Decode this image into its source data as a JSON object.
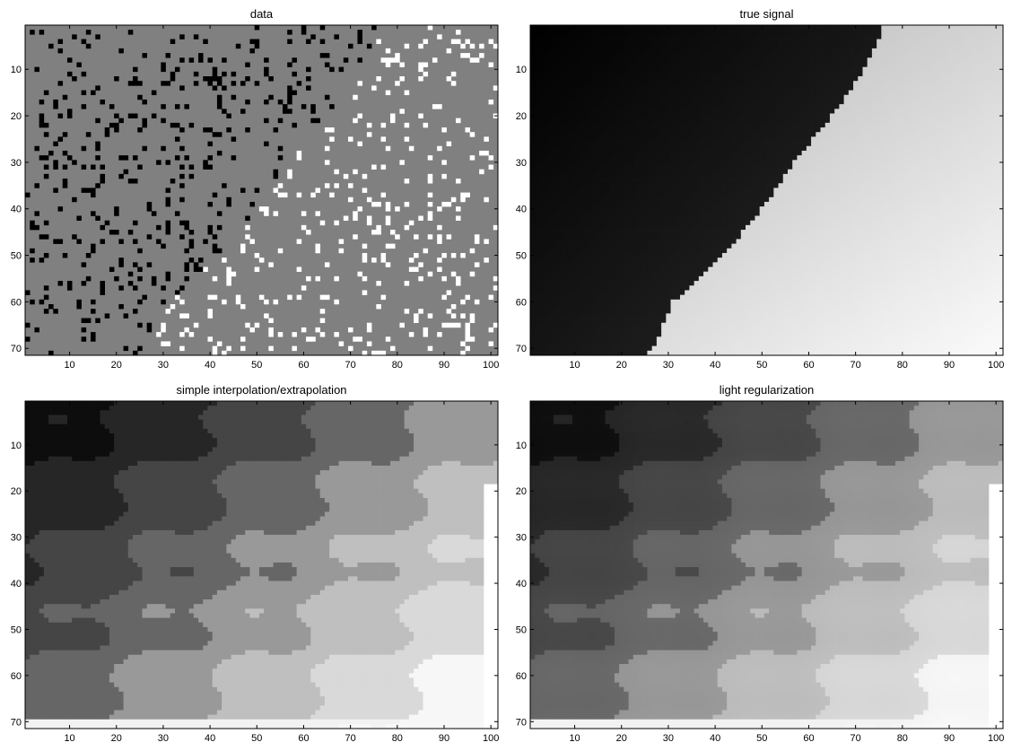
{
  "chart_data": [
    {
      "type": "heatmap",
      "title": "data",
      "xlim": [
        1,
        101
      ],
      "ylim": [
        1,
        71
      ],
      "xticks": [
        10,
        20,
        30,
        40,
        50,
        60,
        70,
        80,
        90,
        100
      ],
      "yticks": [
        10,
        20,
        30,
        40,
        50,
        60,
        70
      ],
      "y_reversed": true,
      "colormap": "gray",
      "description_of_values": "mostly mid-gray background (missing data) with sparse black and white single-cell samples",
      "background_value": 0.5,
      "sample_density": 0.1,
      "samples": "randomly scattered black and white pixels; white more frequent toward right/bottom"
    },
    {
      "type": "heatmap",
      "title": "true signal",
      "xlim": [
        1,
        101
      ],
      "ylim": [
        1,
        71
      ],
      "xticks": [
        10,
        20,
        30,
        40,
        50,
        60,
        70,
        80,
        90,
        100
      ],
      "yticks": [
        10,
        20,
        30,
        40,
        50,
        60,
        70
      ],
      "y_reversed": true,
      "colormap": "gray",
      "boundary": [
        [
          1,
          76
        ],
        [
          10,
          72
        ],
        [
          20,
          65
        ],
        [
          30,
          57
        ],
        [
          40,
          50
        ],
        [
          50,
          42
        ],
        [
          60,
          31
        ],
        [
          70,
          27
        ],
        [
          71,
          26
        ]
      ],
      "dark_region_value_range": [
        0.0,
        0.22
      ],
      "light_region_value_range": [
        0.68,
        0.98
      ]
    },
    {
      "type": "heatmap",
      "title": "simple interpolation/extrapolation",
      "xlim": [
        1,
        101
      ],
      "ylim": [
        1,
        71
      ],
      "xticks": [
        10,
        20,
        30,
        40,
        50,
        60,
        70,
        80,
        90,
        100
      ],
      "yticks": [
        10,
        20,
        30,
        40,
        50,
        60,
        70
      ],
      "y_reversed": true,
      "colormap": "gray",
      "rendering": "blocky",
      "band_levels": [
        0.05,
        0.15,
        0.27,
        0.4,
        0.6,
        0.75,
        0.85,
        0.97
      ]
    },
    {
      "type": "heatmap",
      "title": "light regularization",
      "xlim": [
        1,
        101
      ],
      "ylim": [
        1,
        71
      ],
      "xticks": [
        10,
        20,
        30,
        40,
        50,
        60,
        70,
        80,
        90,
        100
      ],
      "yticks": [
        10,
        20,
        30,
        40,
        50,
        60,
        70
      ],
      "y_reversed": true,
      "colormap": "gray",
      "rendering": "slightly smoothed",
      "band_levels": [
        0.05,
        0.15,
        0.27,
        0.4,
        0.6,
        0.75,
        0.85,
        0.97
      ]
    }
  ]
}
